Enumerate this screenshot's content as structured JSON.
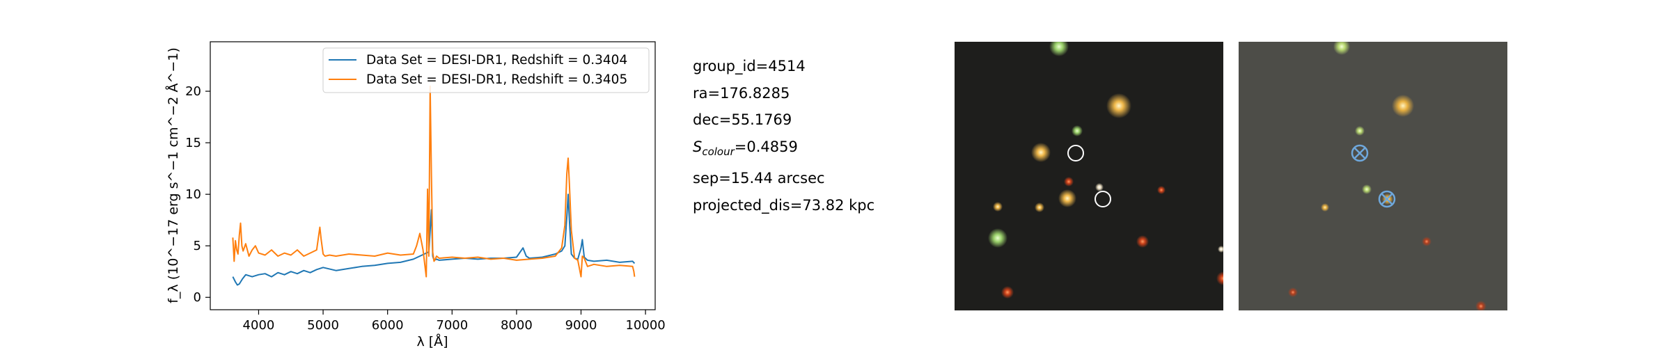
{
  "chart_data": {
    "type": "line",
    "xlabel": "λ [Å]",
    "ylabel": "f_λ (10^−17 erg s^−1 cm^−2 Å^−1)",
    "xlim": [
      3250,
      10150
    ],
    "ylim": [
      -1.2,
      24.8
    ],
    "xticks": [
      4000,
      5000,
      6000,
      7000,
      8000,
      9000,
      10000
    ],
    "yticks": [
      0,
      5,
      10,
      15,
      20
    ],
    "legend_position": "top-right",
    "grid": false,
    "series": [
      {
        "name": "Data Set = DESI-DR1, Redshift = 0.3404",
        "color": "#1f77b4",
        "x": [
          3600,
          3640,
          3670,
          3700,
          3750,
          3800,
          3900,
          4000,
          4100,
          4200,
          4300,
          4400,
          4500,
          4600,
          4700,
          4800,
          4900,
          5000,
          5200,
          5400,
          5600,
          5800,
          6000,
          6200,
          6400,
          6500,
          6600,
          6640,
          6680,
          6700,
          6720,
          6760,
          6800,
          7000,
          7200,
          7400,
          7600,
          7800,
          8000,
          8100,
          8150,
          8200,
          8400,
          8600,
          8700,
          8750,
          8780,
          8800,
          8820,
          8850,
          8900,
          8950,
          9000,
          9020,
          9050,
          9100,
          9200,
          9400,
          9600,
          9800,
          9830
        ],
        "y": [
          2.0,
          1.5,
          1.2,
          1.3,
          1.8,
          2.2,
          2.0,
          2.2,
          2.3,
          2.0,
          2.4,
          2.2,
          2.5,
          2.3,
          2.6,
          2.4,
          2.7,
          2.9,
          2.6,
          2.8,
          3.0,
          3.1,
          3.3,
          3.4,
          3.7,
          4.0,
          4.3,
          4.4,
          8.5,
          4.0,
          3.6,
          3.7,
          3.6,
          3.7,
          3.8,
          3.7,
          3.8,
          3.8,
          3.9,
          4.8,
          4.0,
          3.8,
          3.9,
          4.2,
          4.5,
          5.0,
          7.8,
          10.0,
          7.5,
          4.2,
          3.8,
          3.7,
          4.8,
          5.6,
          3.9,
          3.6,
          3.5,
          3.6,
          3.4,
          3.5,
          3.3
        ]
      },
      {
        "name": "Data Set = DESI-DR1, Redshift = 0.3405",
        "color": "#ff7f0e",
        "x": [
          3600,
          3620,
          3640,
          3660,
          3680,
          3700,
          3720,
          3740,
          3760,
          3800,
          3850,
          3900,
          3950,
          4000,
          4100,
          4200,
          4300,
          4400,
          4500,
          4600,
          4700,
          4800,
          4900,
          4950,
          4970,
          5000,
          5030,
          5100,
          5200,
          5400,
          5600,
          5800,
          6000,
          6200,
          6400,
          6450,
          6500,
          6550,
          6600,
          6620,
          6640,
          6660,
          6680,
          6700,
          6720,
          6760,
          6800,
          7000,
          7200,
          7400,
          7600,
          7800,
          8000,
          8200,
          8400,
          8600,
          8700,
          8750,
          8780,
          8800,
          8820,
          8850,
          8900,
          8950,
          9000,
          9020,
          9050,
          9100,
          9200,
          9400,
          9600,
          9800,
          9820,
          9830
        ],
        "y": [
          5.8,
          3.5,
          5.5,
          4.6,
          4.2,
          6.0,
          7.2,
          5.0,
          4.5,
          5.2,
          4.0,
          4.6,
          5.0,
          4.3,
          4.1,
          4.6,
          4.0,
          4.3,
          4.1,
          4.6,
          4.0,
          4.3,
          4.6,
          6.8,
          5.6,
          4.2,
          4.0,
          4.1,
          4.0,
          4.2,
          4.1,
          4.0,
          4.3,
          4.1,
          4.2,
          5.0,
          6.2,
          4.6,
          2.0,
          10.5,
          4.0,
          20.5,
          12.0,
          4.4,
          3.5,
          4.0,
          3.8,
          3.9,
          3.8,
          3.9,
          3.7,
          3.8,
          3.6,
          3.7,
          3.8,
          4.0,
          4.8,
          7.0,
          12.0,
          13.5,
          11.0,
          6.5,
          3.8,
          3.6,
          2.0,
          4.0,
          3.8,
          3.0,
          3.2,
          3.0,
          3.1,
          3.0,
          2.5,
          2.0
        ]
      }
    ]
  },
  "info": {
    "group_id": "group_id=4514",
    "ra": "ra=176.8285",
    "dec": "dec=55.1769",
    "scolour_value": "=0.4859",
    "sep": "sep=15.44 arcsec",
    "projected_dis": "projected_dis=73.82 kpc"
  },
  "colors": {
    "left_cutout_bg": "#1e1e1c",
    "right_cutout_bg": "#4d4d48",
    "circle_marker": "#ffffff",
    "cross_marker": "#6fa8dc"
  }
}
